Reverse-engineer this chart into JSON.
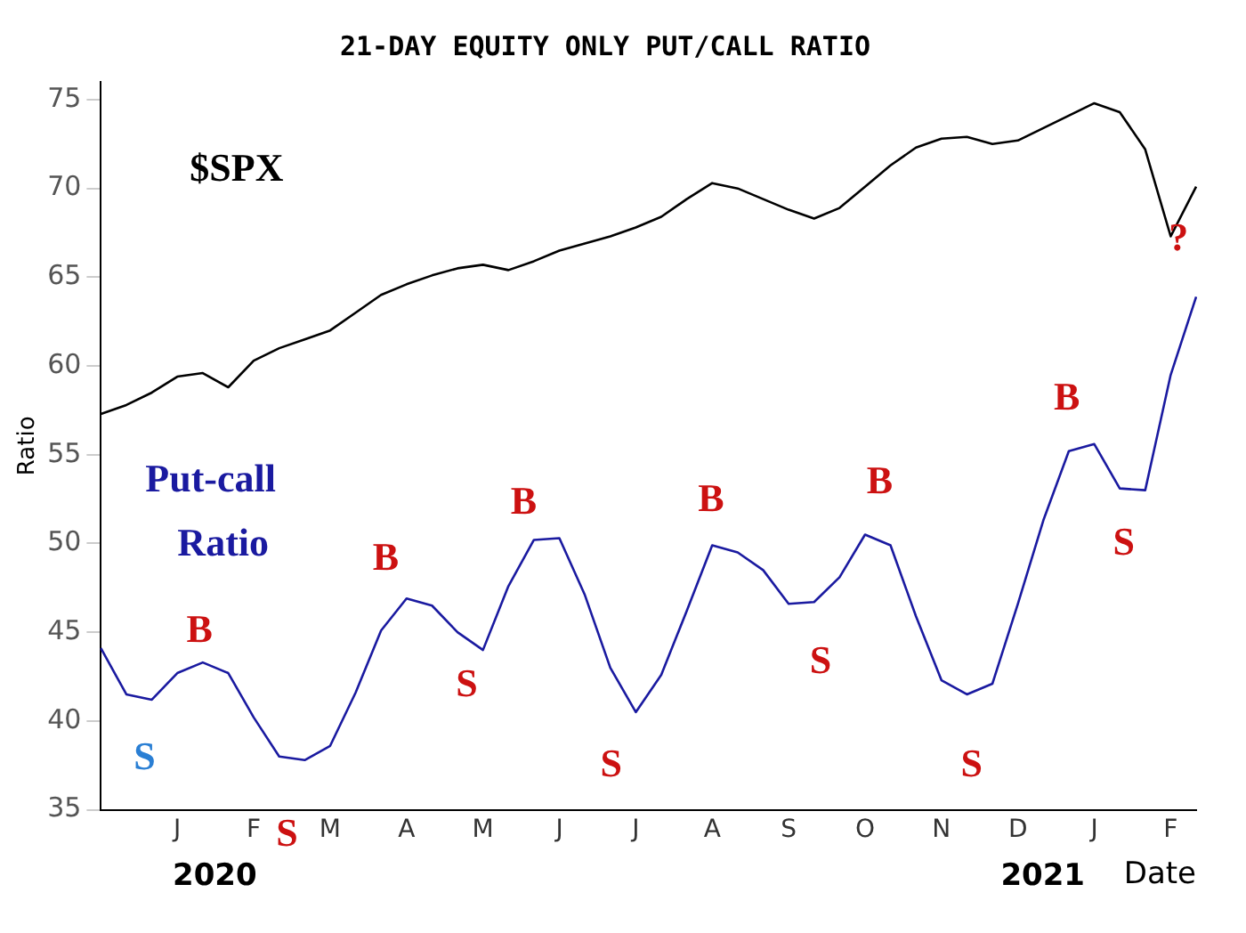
{
  "chart_data": {
    "type": "line",
    "title": "21-DAY EQUITY ONLY PUT/CALL RATIO",
    "xlabel": "Date",
    "ylabel": "Ratio",
    "categories": [
      null,
      null,
      null,
      "J",
      null,
      null,
      "F",
      null,
      null,
      "M",
      null,
      null,
      "A",
      null,
      null,
      "M",
      null,
      null,
      "J",
      null,
      null,
      "J",
      null,
      null,
      "A",
      null,
      null,
      "S",
      null,
      null,
      "O",
      null,
      null,
      "N",
      null,
      null,
      "D",
      null,
      null,
      "J",
      null,
      null,
      "F",
      null
    ],
    "ylim": [
      35,
      76
    ],
    "yticks": [
      35,
      40,
      45,
      50,
      55,
      60,
      65,
      70,
      75
    ],
    "grid": false,
    "legend": false,
    "marker": "none",
    "line_style": "solid",
    "series": [
      {
        "name": "$SPX",
        "color": "#000000",
        "values": [
          57.3,
          57.8,
          58.5,
          59.4,
          59.6,
          58.8,
          60.3,
          61.0,
          61.5,
          62.0,
          63.0,
          64.0,
          64.6,
          65.1,
          65.5,
          65.7,
          65.4,
          65.9,
          66.5,
          66.9,
          67.3,
          67.8,
          68.4,
          69.4,
          70.3,
          70.0,
          69.4,
          68.8,
          68.3,
          68.9,
          70.1,
          71.3,
          72.3,
          72.8,
          72.9,
          72.5,
          72.7,
          73.4,
          74.1,
          74.8,
          74.3,
          72.2,
          67.3,
          70.1
        ]
      },
      {
        "name": "Put-call Ratio",
        "color": "#1a1aa0",
        "values": [
          44.1,
          41.5,
          41.2,
          42.7,
          43.3,
          42.7,
          40.2,
          38.0,
          37.8,
          38.6,
          41.6,
          45.1,
          46.9,
          46.5,
          45.0,
          44.0,
          47.6,
          50.2,
          50.3,
          47.1,
          43.0,
          40.5,
          42.6,
          46.2,
          49.9,
          49.5,
          48.5,
          46.6,
          46.7,
          48.1,
          50.5,
          49.9,
          45.9,
          42.3,
          41.5,
          42.1,
          46.6,
          51.3,
          55.2,
          55.6,
          53.1,
          53.0,
          59.5,
          63.9
        ]
      }
    ],
    "annotations": [
      "S",
      "B",
      "S",
      "B",
      "S",
      "B",
      "S",
      "B",
      "S",
      "B",
      "S",
      "B",
      "S",
      "?",
      "2020",
      "2021"
    ]
  }
}
